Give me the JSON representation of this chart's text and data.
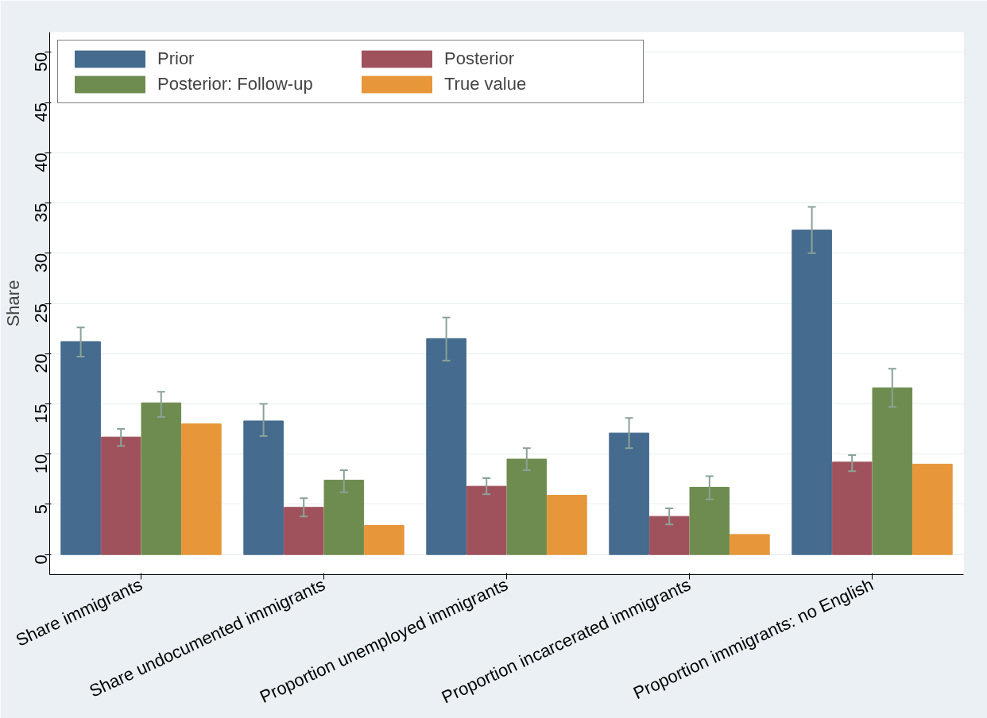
{
  "chart_data": {
    "type": "bar",
    "ylabel": "Share",
    "categories": [
      "Share immigrants",
      "Share undocumented immigrants",
      "Proportion unemployed immigrants",
      "Proportion incarcerated immigrants",
      "Proportion immigrants: no English"
    ],
    "series": [
      {
        "name": "Prior",
        "color": "#456b8e",
        "values": [
          21.2,
          13.3,
          21.5,
          12.1,
          32.3
        ],
        "errors": [
          [
            19.7,
            22.6
          ],
          [
            11.8,
            15.0
          ],
          [
            19.3,
            23.6
          ],
          [
            10.6,
            13.6
          ],
          [
            30.0,
            34.6
          ]
        ]
      },
      {
        "name": "Posterior",
        "color": "#a0525c",
        "values": [
          11.7,
          4.7,
          6.8,
          3.8,
          9.2
        ],
        "errors": [
          [
            10.8,
            12.5
          ],
          [
            3.8,
            5.6
          ],
          [
            6.0,
            7.6
          ],
          [
            3.0,
            4.6
          ],
          [
            8.3,
            9.9
          ]
        ]
      },
      {
        "name": "Posterior: Follow-up",
        "color": "#6e8c4f",
        "values": [
          15.1,
          7.4,
          9.5,
          6.7,
          16.6
        ],
        "errors": [
          [
            13.7,
            16.2
          ],
          [
            6.2,
            8.4
          ],
          [
            8.4,
            10.6
          ],
          [
            5.5,
            7.8
          ],
          [
            14.7,
            18.5
          ]
        ]
      },
      {
        "name": "True value",
        "color": "#e8963a",
        "values": [
          13.0,
          2.9,
          5.9,
          2.0,
          9.0
        ]
      }
    ],
    "ylim": [
      -2,
      52
    ],
    "yticks": [
      0,
      5,
      10,
      15,
      20,
      25,
      30,
      35,
      40,
      45,
      50
    ],
    "grid": "y",
    "legend": "top left"
  }
}
